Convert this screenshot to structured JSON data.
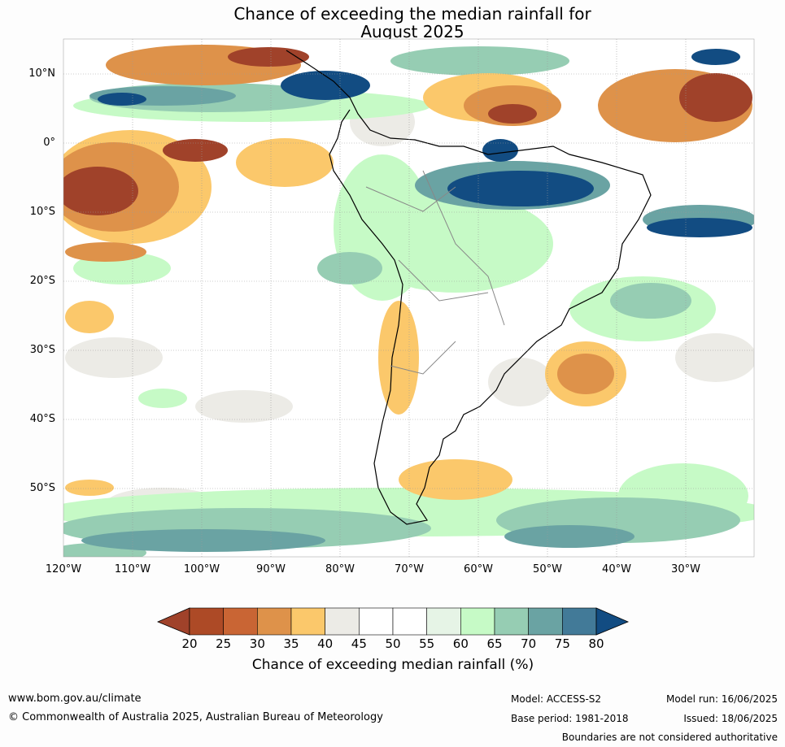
{
  "title": {
    "line1": "Chance of exceeding the median rainfall for",
    "line2": "August 2025"
  },
  "map": {
    "lat_labels": [
      "10°N",
      "0°",
      "10°S",
      "20°S",
      "30°S",
      "40°S",
      "50°S"
    ],
    "lon_labels": [
      "120°W",
      "110°W",
      "100°W",
      "90°W",
      "80°W",
      "70°W",
      "60°W",
      "50°W",
      "40°W",
      "30°W"
    ]
  },
  "colorbar": {
    "title": "Chance of exceeding median rainfall (%)",
    "ticks": [
      "20",
      "25",
      "30",
      "35",
      "40",
      "45",
      "50",
      "55",
      "60",
      "65",
      "70",
      "75",
      "80"
    ],
    "colors": [
      "#a0422a",
      "#ad4a26",
      "#c96534",
      "#de924a",
      "#fbc86b",
      "#ecebe6",
      "#ffffff",
      "#ffffff",
      "#e6f4e6",
      "#c6fac6",
      "#96cdb3",
      "#6aa3a3",
      "#427a98",
      "#124c82"
    ]
  },
  "footer": {
    "website": "www.bom.gov.au/climate",
    "copyright": "© Commonwealth of Australia 2025, Australian Bureau of Meteorology",
    "model": "Model: ACCESS-S2",
    "base_period": "Base period: 1981-2018",
    "model_run": "Model run: 16/06/2025",
    "issued": "Issued: 18/06/2025",
    "disclaimer": "Boundaries are not considered authoritative"
  }
}
